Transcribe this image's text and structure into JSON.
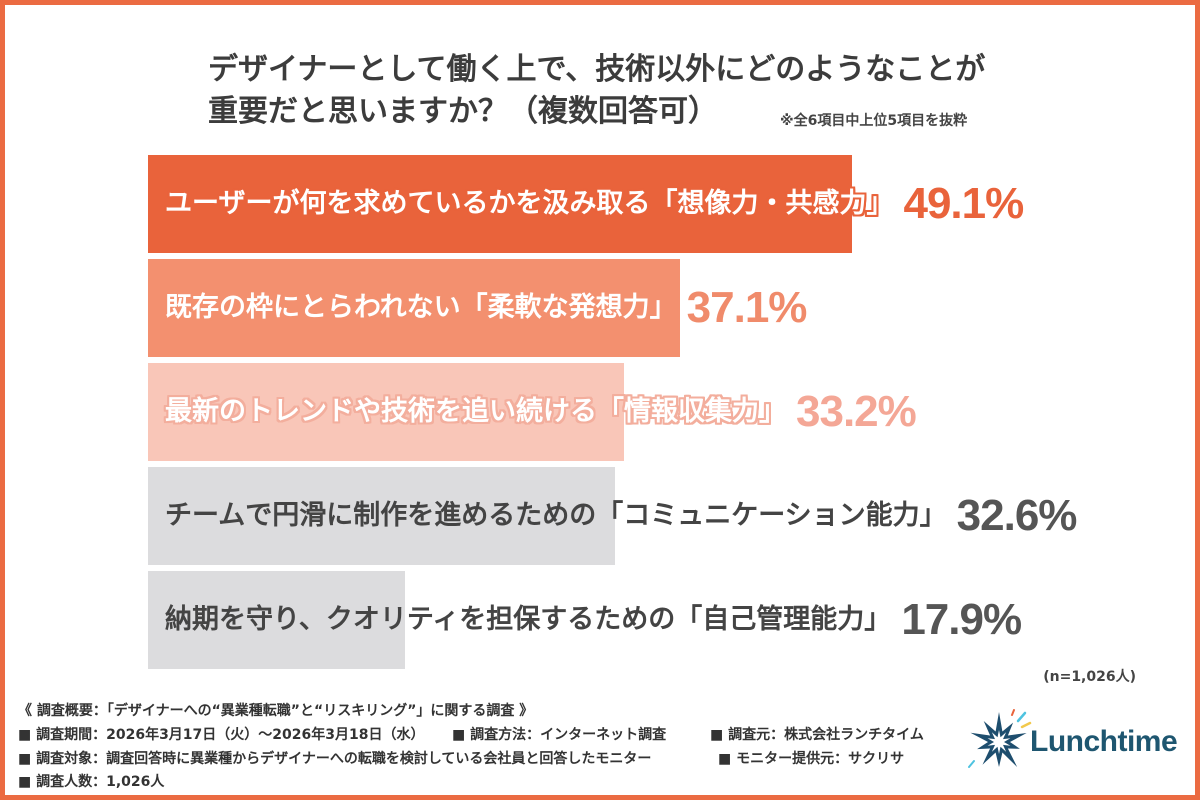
{
  "chart_data": {
    "type": "bar",
    "horizontal": true,
    "title": [
      "デザイナーとして働く上で、技術以外にどのようなことが",
      "重要だと思いますか？（複数回答可）"
    ],
    "annotations": {
      "note": "※全6項目中上位5項目を抜粋",
      "sample_size": "(n=1,026人)"
    },
    "categories": [
      "ユーザーが何を求めているかを汲み取る「想像力・共感力」",
      "既存の枠にとらわれない「柔軟な発想力」",
      "最新のトレンドや技術を追い続ける「情報収集力」",
      "チームで円滑に制作を進めるための「コミュニケーション能力」",
      "納期を守り、クオリティを担保するための「自己管理能力」"
    ],
    "values": [
      49.1,
      37.1,
      33.2,
      32.6,
      17.9
    ],
    "unit": "%",
    "bar_colors": [
      "#E9633B",
      "#F3906F",
      "#F9C6B8",
      "#DCDCDE",
      "#DCDCDE"
    ],
    "value_colors": [
      "#E9633B",
      "#F08B6B",
      "#F4A796",
      "#555555",
      "#555555"
    ],
    "label_colors": [
      "#FFFFFF",
      "#FFFFFF",
      "#FFFFFF",
      "#444444",
      "#444444"
    ],
    "label_outline_colors": [
      "#E9633B",
      "#F3906F",
      "#F3AE9D",
      null,
      null
    ],
    "grid": false,
    "legend": false
  },
  "survey": {
    "heading": "《 調査概要：「デザイナーへの“異業種転職”と“リスキリング”」に関する調査 》",
    "period": "■ 調査期間：2026年3月17日（火）〜2026年3月18日（水）",
    "method": "■ 調査方法：インターネット調査",
    "source": "■ 調査元：株式会社ランチタイム",
    "target": "■ 調査対象：調査回答時に異業種からデザイナーへの転職を検討している会社員と回答したモニター",
    "panel_provider": "■ モニター提供元：サクリサ",
    "respondents": "■ 調査人数：1,026人"
  },
  "logo": {
    "text": "Lunchtime",
    "color": "#1E5670"
  },
  "theme": {
    "frame_color": "#EB6B42",
    "title_color": "#3C3C3C"
  }
}
